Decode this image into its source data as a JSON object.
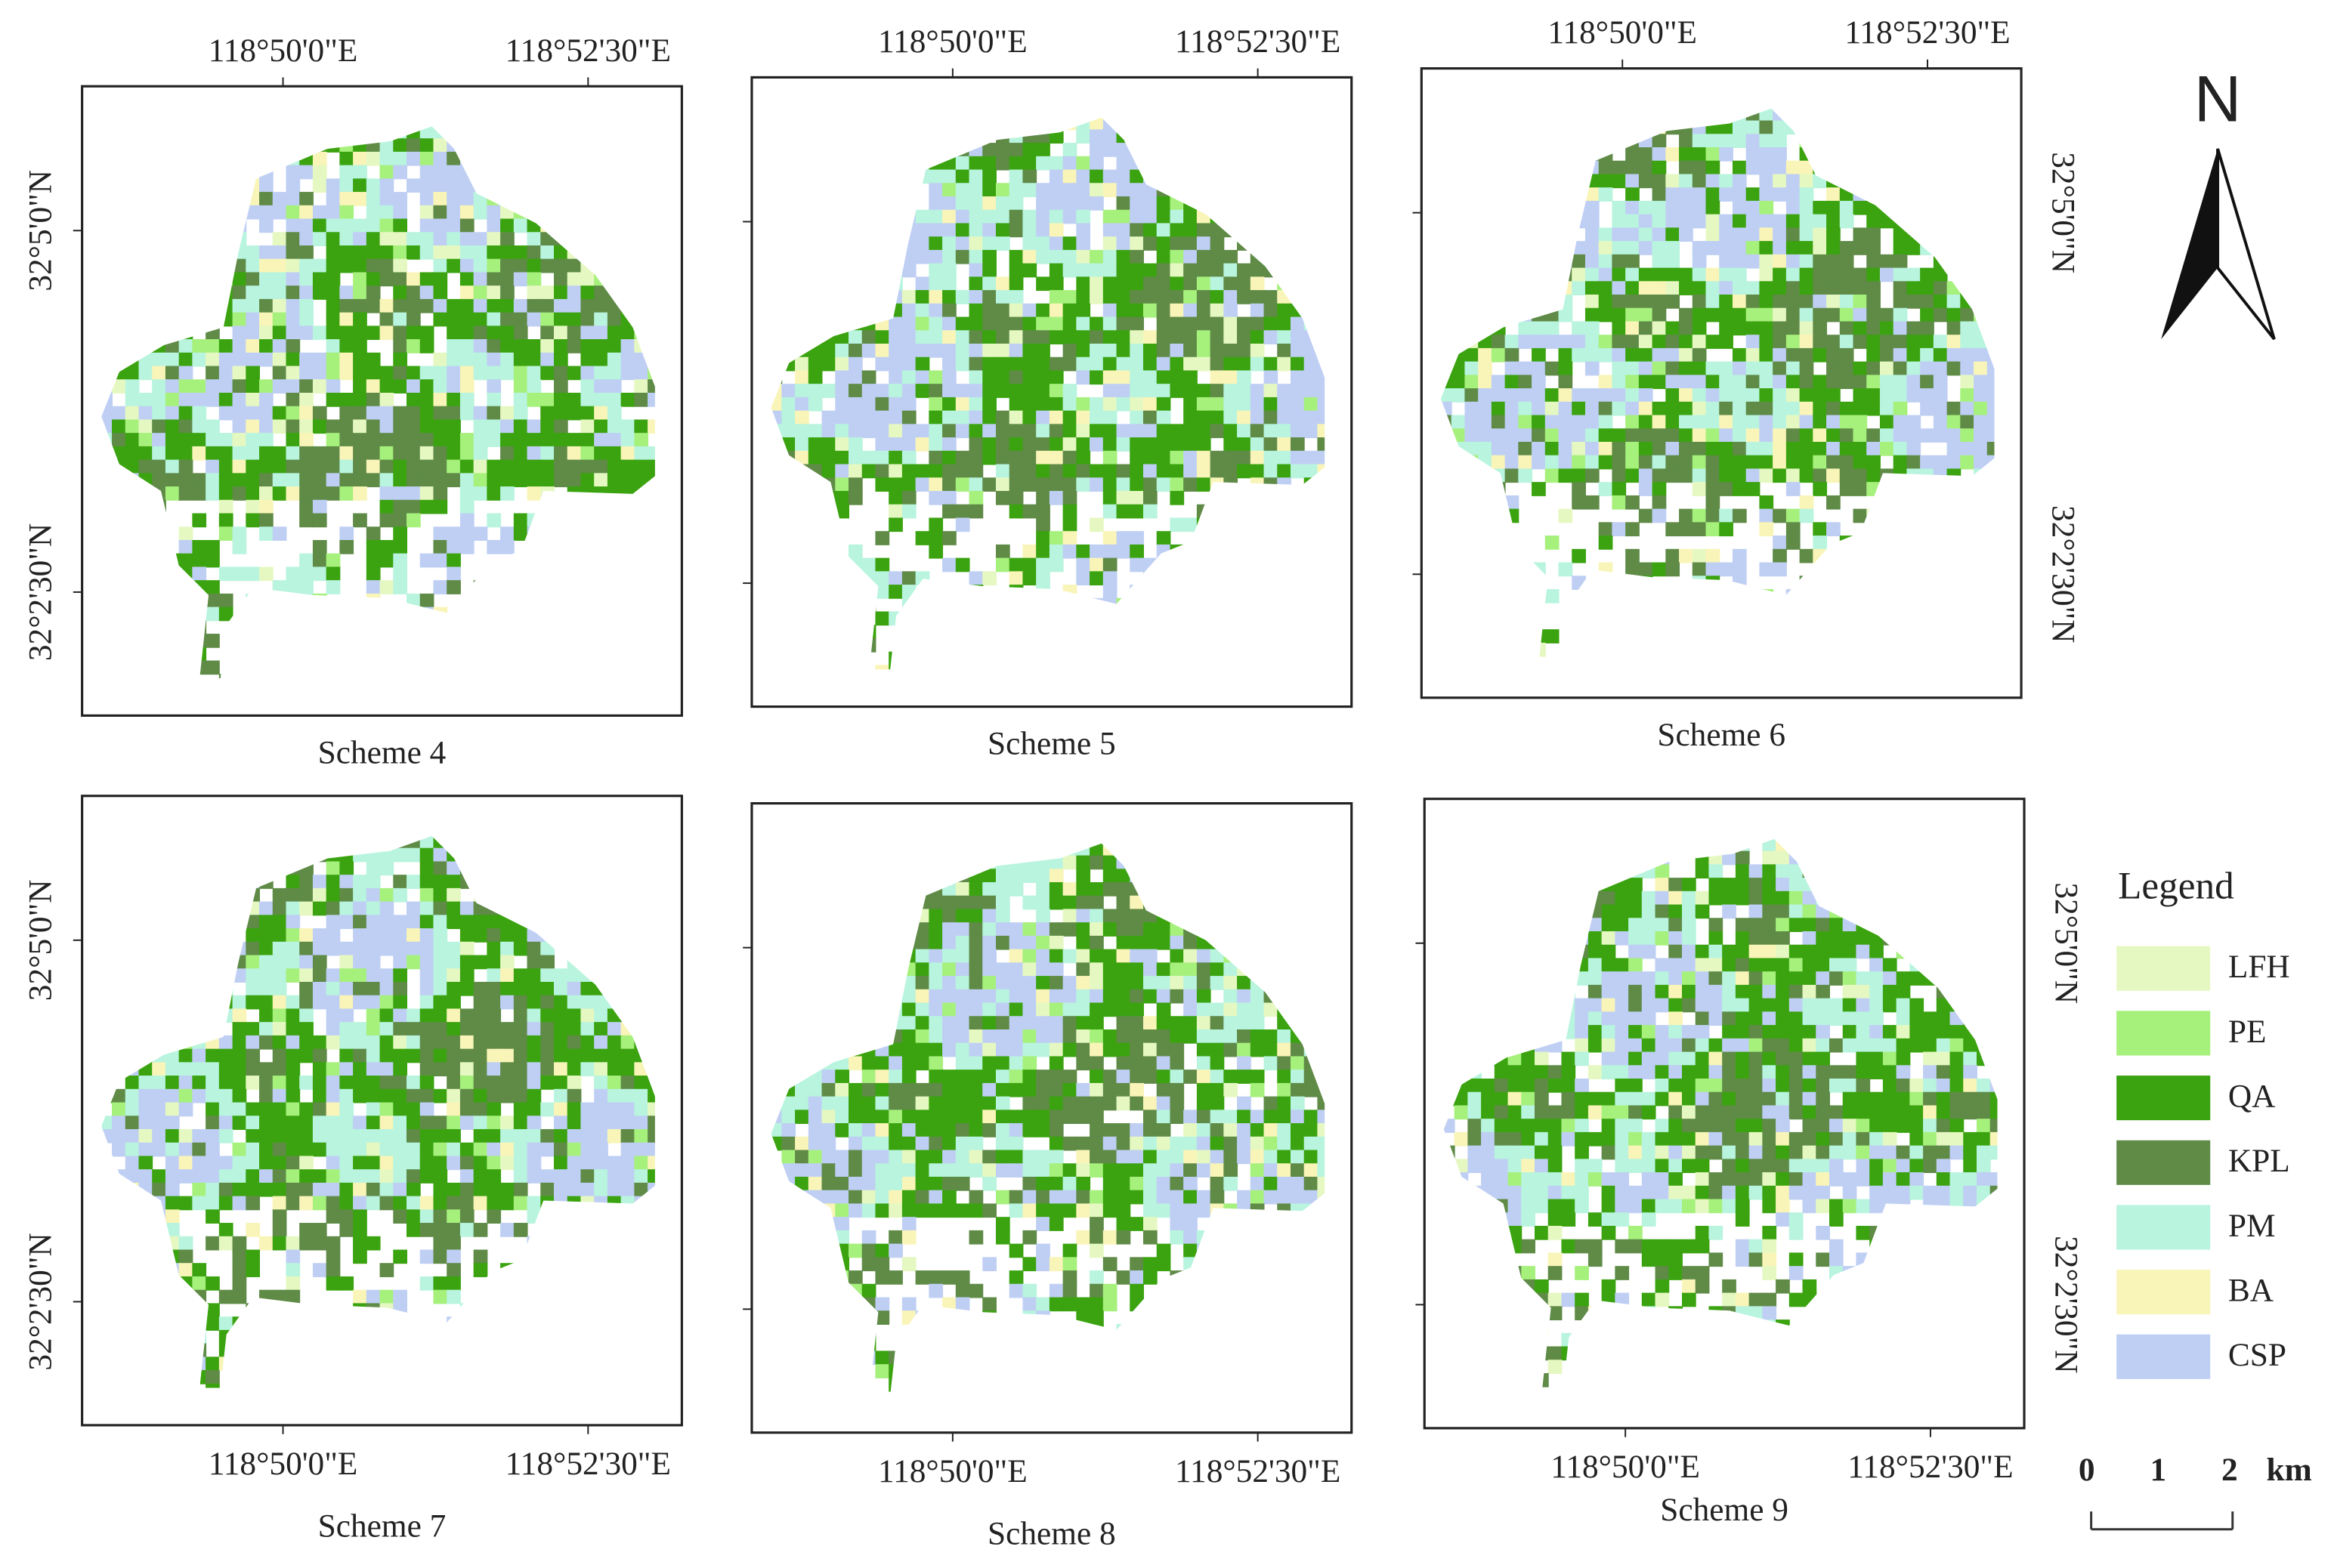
{
  "north": "N",
  "panels": [
    {
      "caption": "Scheme 4",
      "lon_labels": [
        "118°50'0\"E",
        "118°52'30\"E"
      ],
      "lat_labels": [
        "32°5'0\"N",
        "32°2'30\"N"
      ]
    },
    {
      "caption": "Scheme 5",
      "lon_labels": [
        "118°50'0\"E",
        "118°52'30\"E"
      ]
    },
    {
      "caption": "Scheme 6",
      "lon_labels": [
        "118°50'0\"E",
        "118°52'30\"E"
      ],
      "lat_labels": [
        "32°5'0\"N",
        "32°2'30\"N"
      ]
    },
    {
      "caption": "Scheme 7",
      "lon_labels": [
        "118°50'0\"E",
        "118°52'30\"E"
      ],
      "lat_labels": [
        "32°5'0\"N",
        "32°2'30\"N"
      ]
    },
    {
      "caption": "Scheme 8",
      "lon_labels": [
        "118°50'0\"E",
        "118°52'30\"E"
      ]
    },
    {
      "caption": "Scheme 9",
      "lon_labels": [
        "118°50'0\"E",
        "118°52'30\"E"
      ],
      "lat_labels": [
        "32°5'0\"N",
        "32°2'30\"N"
      ]
    }
  ],
  "legend": {
    "title": "Legend",
    "items": [
      {
        "label": "LFH",
        "color": "#e6f8c2"
      },
      {
        "label": "PE",
        "color": "#a6f07c"
      },
      {
        "label": "QA",
        "color": "#3aa30f"
      },
      {
        "label": "KPL",
        "color": "#5f8b47"
      },
      {
        "label": "PM",
        "color": "#b8f4de"
      },
      {
        "label": "BA",
        "color": "#f9f5b8"
      },
      {
        "label": "CSP",
        "color": "#bfcff4"
      }
    ]
  },
  "scale_bar": {
    "labels": [
      "0",
      "1",
      "2"
    ],
    "unit": "km"
  }
}
